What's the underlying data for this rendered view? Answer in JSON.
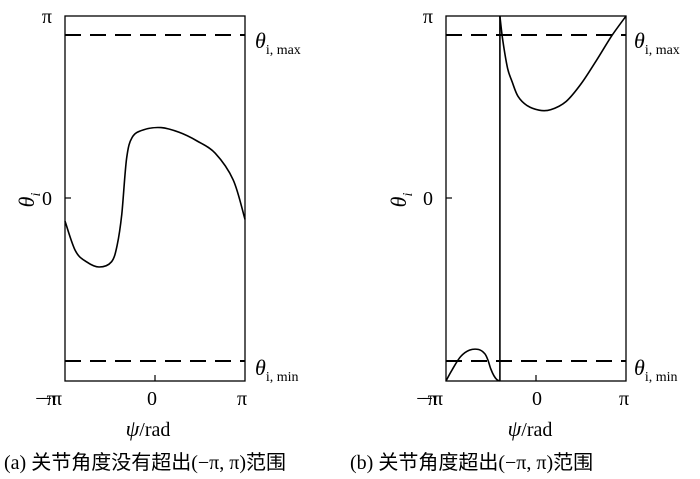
{
  "chart_data": [
    {
      "type": "line",
      "panel": "a",
      "caption": "(a) 关节角度没有超出(−π, π)范围",
      "xlabel_symbol": "ψ",
      "xlabel_unit": "/rad",
      "ylabel_symbol": "θ",
      "ylabel_sub": "i",
      "x_ticks": [
        "−π",
        "0",
        "π"
      ],
      "y_ticks": [
        "π",
        "0",
        "−π"
      ],
      "xlim": [
        -3.1416,
        3.1416
      ],
      "ylim": [
        -3.1416,
        3.1416
      ],
      "reference_lines": [
        {
          "label_symbol": "θ",
          "label_sub": "i, max",
          "y": 2.81
        },
        {
          "label_symbol": "θ",
          "label_sub": "i, min",
          "y": -2.81
        }
      ],
      "series": [
        {
          "style": "solid",
          "x": [
            -3.14,
            -2.78,
            -2.39,
            -1.95,
            -1.52,
            -1.32,
            -1.16,
            -0.99,
            -0.8,
            -0.42,
            0.21,
            0.84,
            1.47,
            2.1,
            2.73,
            3.14
          ],
          "y": [
            -0.39,
            -0.9,
            -1.09,
            -1.18,
            -1.09,
            -0.8,
            -0.27,
            0.69,
            1.05,
            1.18,
            1.22,
            1.14,
            0.99,
            0.78,
            0.32,
            -0.36
          ]
        }
      ]
    },
    {
      "type": "line",
      "panel": "b",
      "caption": "(b) 关节角度超出(−π, π)范围",
      "xlabel_symbol": "ψ",
      "xlabel_unit": "/rad",
      "ylabel_symbol": "θ",
      "ylabel_sub": "i",
      "x_ticks": [
        "−π",
        "0",
        "π"
      ],
      "y_ticks": [
        "π",
        "0",
        "−π"
      ],
      "xlim": [
        -3.1416,
        3.1416
      ],
      "ylim": [
        -3.1416,
        3.1416
      ],
      "reference_lines": [
        {
          "label_symbol": "θ",
          "label_sub": "i, max",
          "y": 2.81
        },
        {
          "label_symbol": "θ",
          "label_sub": "i, min",
          "y": -2.81
        }
      ],
      "series": [
        {
          "style": "solid",
          "x": [
            -3.14,
            -2.93,
            -2.63,
            -2.32,
            -2.0,
            -1.79,
            -1.68,
            -1.58,
            -1.47,
            -1.36,
            -1.26
          ],
          "y": [
            -3.14,
            -2.95,
            -2.72,
            -2.61,
            -2.6,
            -2.67,
            -2.78,
            -2.93,
            -3.05,
            -3.12,
            -3.14
          ]
        },
        {
          "style": "solid",
          "x": [
            -1.26,
            -1.26
          ],
          "y": [
            -3.14,
            3.14
          ]
        },
        {
          "style": "solid",
          "x": [
            -1.26,
            -1.16,
            -0.99,
            -0.84,
            -0.63,
            -0.31,
            0.11,
            0.52,
            1.05,
            1.58,
            2.1,
            2.63,
            3.14
          ],
          "y": [
            3.14,
            2.72,
            2.24,
            2.02,
            1.76,
            1.6,
            1.52,
            1.53,
            1.67,
            1.98,
            2.37,
            2.79,
            3.14
          ]
        }
      ]
    }
  ]
}
